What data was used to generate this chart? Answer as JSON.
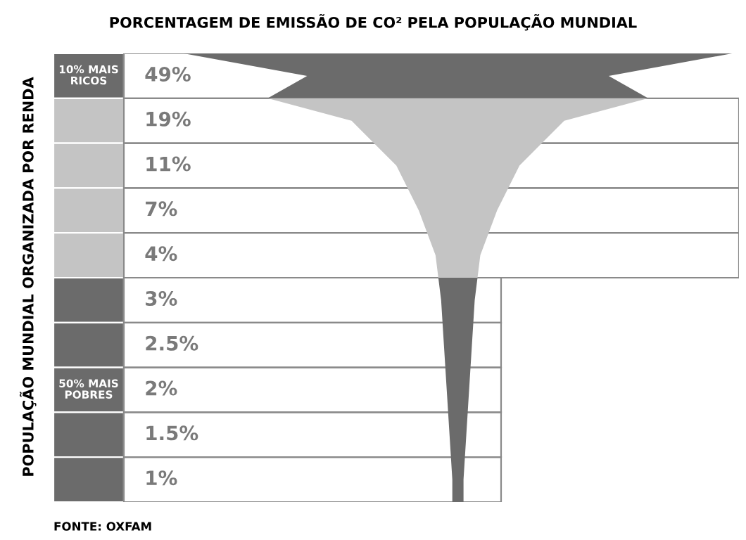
{
  "chart_data": {
    "type": "other",
    "title": "PORCENTAGEM DE EMISSÃO DE CO² PELA POPULAÇÃO MUNDIAL",
    "ylabel": "POPULAÇÃO MUNDIAL ORGANIZADA POR RENDA",
    "categories": [
      null,
      null,
      null,
      null,
      null,
      null,
      null,
      null,
      null,
      null
    ],
    "values": [
      49,
      19,
      11,
      7,
      4,
      3,
      2.5,
      2,
      1.5,
      1
    ],
    "value_labels": [
      "49%",
      "19%",
      "11%",
      "7%",
      "4%",
      "3%",
      "2.5%",
      "2%",
      "1.5%",
      "1%"
    ],
    "colors": [
      "#6b6b6b",
      "#c4c4c4",
      "#c4c4c4",
      "#c4c4c4",
      "#c4c4c4",
      "#6b6b6b",
      "#6b6b6b",
      "#6b6b6b",
      "#6b6b6b",
      "#6b6b6b"
    ],
    "annotations": [
      "10% MAIS RICOS",
      "50% MAIS POBRES",
      "FONTE: OXFAM"
    ]
  }
}
